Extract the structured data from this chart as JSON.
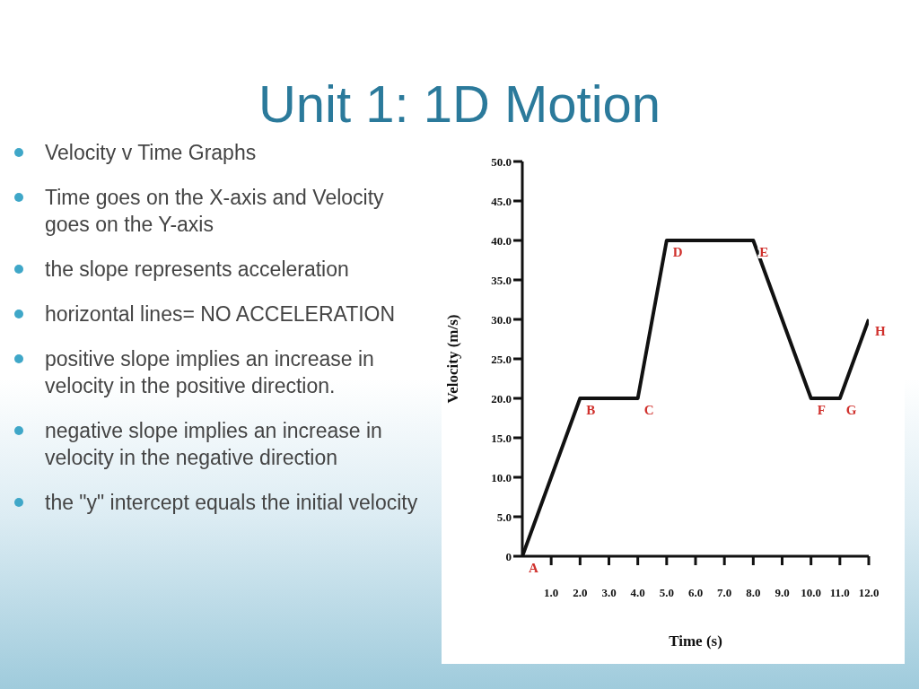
{
  "chart_data": {
    "type": "line",
    "title": "Unit 1: 1D Motion",
    "xlabel": "Time (s)",
    "ylabel": "Velocity (m/s)",
    "x": [
      0,
      2,
      4,
      5,
      8,
      10,
      11,
      12
    ],
    "series": [
      {
        "color": "#111111",
        "values": [
          0,
          20,
          20,
          40,
          40,
          20,
          20,
          30
        ]
      }
    ],
    "xlim": [
      0,
      12
    ],
    "xticks": [
      {
        "value": 1,
        "label": "1.0"
      },
      {
        "value": 2,
        "label": "2.0"
      },
      {
        "value": 3,
        "label": "3.0"
      },
      {
        "value": 4,
        "label": "4.0"
      },
      {
        "value": 5,
        "label": "5.0"
      },
      {
        "value": 6,
        "label": "6.0"
      },
      {
        "value": 7,
        "label": "7.0"
      },
      {
        "value": 8,
        "label": "8.0"
      },
      {
        "value": 9,
        "label": "9.0"
      },
      {
        "value": 10,
        "label": "10.0"
      },
      {
        "value": 11,
        "label": "11.0"
      },
      {
        "value": 12,
        "label": "12.0"
      }
    ],
    "ylim": [
      0,
      50
    ],
    "yticks": [
      0,
      {
        "value": 5,
        "label": "5.0"
      },
      {
        "value": 10,
        "label": "10.0"
      },
      {
        "value": 15,
        "label": "15.0"
      },
      {
        "value": 20,
        "label": "20.0"
      },
      {
        "value": 25,
        "label": "25.0"
      },
      {
        "value": 30,
        "label": "30.0"
      },
      {
        "value": 35,
        "label": "35.0"
      },
      {
        "value": 40,
        "label": "40.0"
      },
      {
        "value": 45,
        "label": "45.0"
      },
      {
        "value": 50,
        "label": "50.0"
      }
    ],
    "annotations": [
      "Velocity v Time Graphs",
      "Time goes on the X-axis and Velocity goes on the Y-axis",
      "the slope represents acceleration",
      "horizontal lines= NO ACCELERATION",
      "positive slope implies an increase in velocity in the positive direction.",
      "negative slope implies an increase in velocity in the negative direction",
      "the \"y\" intercept equals the initial velocity",
      {
        "text": "A",
        "x": 0,
        "y": 0
      },
      {
        "text": "B",
        "x": 2,
        "y": 20
      },
      {
        "text": "C",
        "x": 4,
        "y": 20
      },
      {
        "text": "D",
        "x": 5,
        "y": 40
      },
      {
        "text": "E",
        "x": 8,
        "y": 40
      },
      {
        "text": "F",
        "x": 10,
        "y": 20
      },
      {
        "text": "G",
        "x": 11,
        "y": 20
      },
      {
        "text": "H",
        "x": 12,
        "y": 30
      }
    ]
  }
}
